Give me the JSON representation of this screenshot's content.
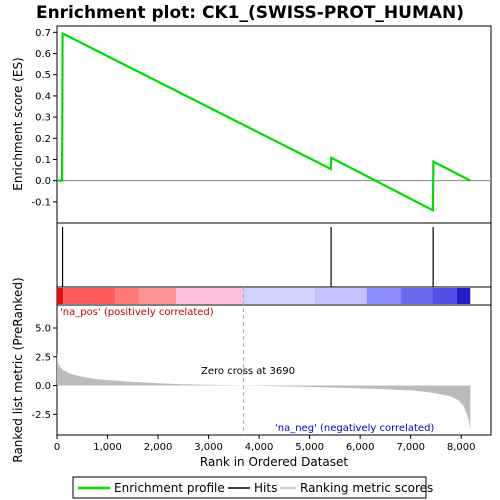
{
  "chart_data": {
    "type": "line",
    "title": "Enrichment plot: CK1_(SWISS-PROT_HUMAN)",
    "xlabel": "Rank in Ordered Dataset",
    "ylabel_top": "Enrichment score (ES)",
    "ylabel_bottom": "Ranked list metric (PreRanked)",
    "xlim": [
      0,
      8590
    ],
    "x_ticks": [
      0,
      1000,
      2000,
      3000,
      4000,
      5000,
      6000,
      7000,
      8000
    ],
    "x_tick_labels": [
      "0",
      "1,000",
      "2,000",
      "3,000",
      "4,000",
      "5,000",
      "6,000",
      "7,000",
      "8,000"
    ],
    "es_ylim": [
      -0.2,
      0.73
    ],
    "es_ticks": [
      -0.1,
      0.0,
      0.1,
      0.2,
      0.3,
      0.4,
      0.5,
      0.6,
      0.7
    ],
    "es_tick_labels": [
      "-0.1",
      "0.0",
      "0.1",
      "0.2",
      "0.3",
      "0.4",
      "0.5",
      "0.6",
      "0.7"
    ],
    "metric_ylim": [
      -4.3,
      7.0
    ],
    "metric_ticks": [
      -2.5,
      0.0,
      2.5,
      5.0
    ],
    "metric_tick_labels": [
      "-2.5",
      "0.0",
      "2.5",
      "5.0"
    ],
    "enrichment_profile": {
      "name": "Enrichment profile",
      "color": "#00dd00",
      "x": [
        0,
        100,
        110,
        5420,
        5430,
        7440,
        7450,
        8180
      ],
      "y": [
        0.0,
        0.0,
        0.695,
        0.055,
        0.108,
        -0.14,
        0.09,
        0.0
      ]
    },
    "hits": [
      110,
      5425,
      7445
    ],
    "ranking_metric": {
      "x": [
        0,
        20,
        60,
        120,
        250,
        500,
        800,
        1200,
        1600,
        2000,
        2500,
        3000,
        3690,
        4200,
        5000,
        5500,
        6000,
        6500,
        7000,
        7300,
        7600,
        7800,
        7950,
        8050,
        8100,
        8150,
        8180
      ],
      "y": [
        2.9,
        2.0,
        1.6,
        1.35,
        1.05,
        0.75,
        0.55,
        0.4,
        0.3,
        0.2,
        0.12,
        0.06,
        0.0,
        -0.05,
        -0.12,
        -0.18,
        -0.25,
        -0.32,
        -0.42,
        -0.55,
        -0.75,
        -0.95,
        -1.3,
        -1.8,
        -2.3,
        -3.0,
        -4.0
      ]
    },
    "zero_cross": 3690,
    "annotations": {
      "pos": "'na_pos' (positively correlated)",
      "neg": "'na_neg' (negatively correlated)",
      "zero": "Zero cross at 3690"
    },
    "gradient_bar": {
      "segments": [
        {
          "start": 0,
          "end": 120,
          "color": "#e01010"
        },
        {
          "start": 120,
          "end": 1150,
          "color": "#ff5a5a"
        },
        {
          "start": 1150,
          "end": 1620,
          "color": "#ff7878"
        },
        {
          "start": 1620,
          "end": 2360,
          "color": "#ff9494"
        },
        {
          "start": 2360,
          "end": 3690,
          "color": "#ffc0e0"
        },
        {
          "start": 3690,
          "end": 5100,
          "color": "#d2d2ff"
        },
        {
          "start": 5100,
          "end": 6130,
          "color": "#c2c2ff"
        },
        {
          "start": 6130,
          "end": 6800,
          "color": "#8c8cff"
        },
        {
          "start": 6800,
          "end": 7430,
          "color": "#6a6aef"
        },
        {
          "start": 7430,
          "end": 7910,
          "color": "#5050e8"
        },
        {
          "start": 7910,
          "end": 8180,
          "color": "#2020c8"
        }
      ]
    },
    "legend": [
      {
        "label": "Enrichment profile",
        "color": "#00dd00"
      },
      {
        "label": "Hits",
        "color": "#000000"
      },
      {
        "label": "Ranking metric scores",
        "color": "#bbbbbb"
      }
    ]
  }
}
